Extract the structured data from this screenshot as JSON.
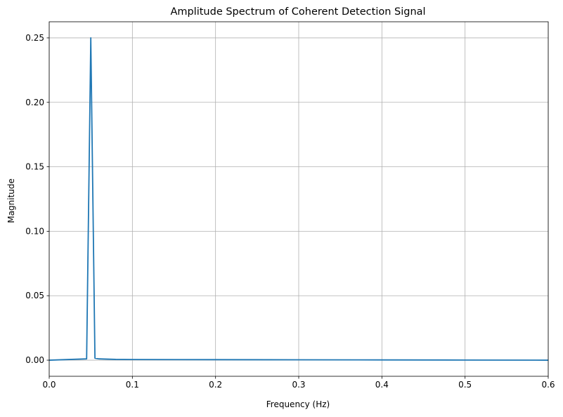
{
  "chart_data": {
    "type": "line",
    "title": "Amplitude Spectrum of Coherent Detection Signal",
    "xlabel": "Frequency (Hz)",
    "ylabel": "Magnitude",
    "xlim": [
      0,
      0.6
    ],
    "ylim": [
      -0.0125,
      0.2625
    ],
    "xticks": [
      0.0,
      0.1,
      0.2,
      0.3,
      0.4,
      0.5,
      0.6
    ],
    "xtick_labels": [
      "0.0",
      "0.1",
      "0.2",
      "0.3",
      "0.4",
      "0.5",
      "0.6"
    ],
    "yticks": [
      0.0,
      0.05,
      0.1,
      0.15,
      0.2,
      0.25
    ],
    "ytick_labels": [
      "0.00",
      "0.05",
      "0.10",
      "0.15",
      "0.20",
      "0.25"
    ],
    "grid": true,
    "series": [
      {
        "color": "#1f77b4",
        "x": [
          0.0,
          0.045,
          0.05,
          0.055,
          0.06,
          0.08,
          0.1,
          0.2,
          0.3,
          0.4,
          0.5,
          0.6
        ],
        "y": [
          0.0,
          0.001,
          0.25,
          0.0015,
          0.001,
          0.0006,
          0.0005,
          0.0004,
          0.0003,
          0.0002,
          0.0001,
          0.0
        ]
      }
    ]
  }
}
